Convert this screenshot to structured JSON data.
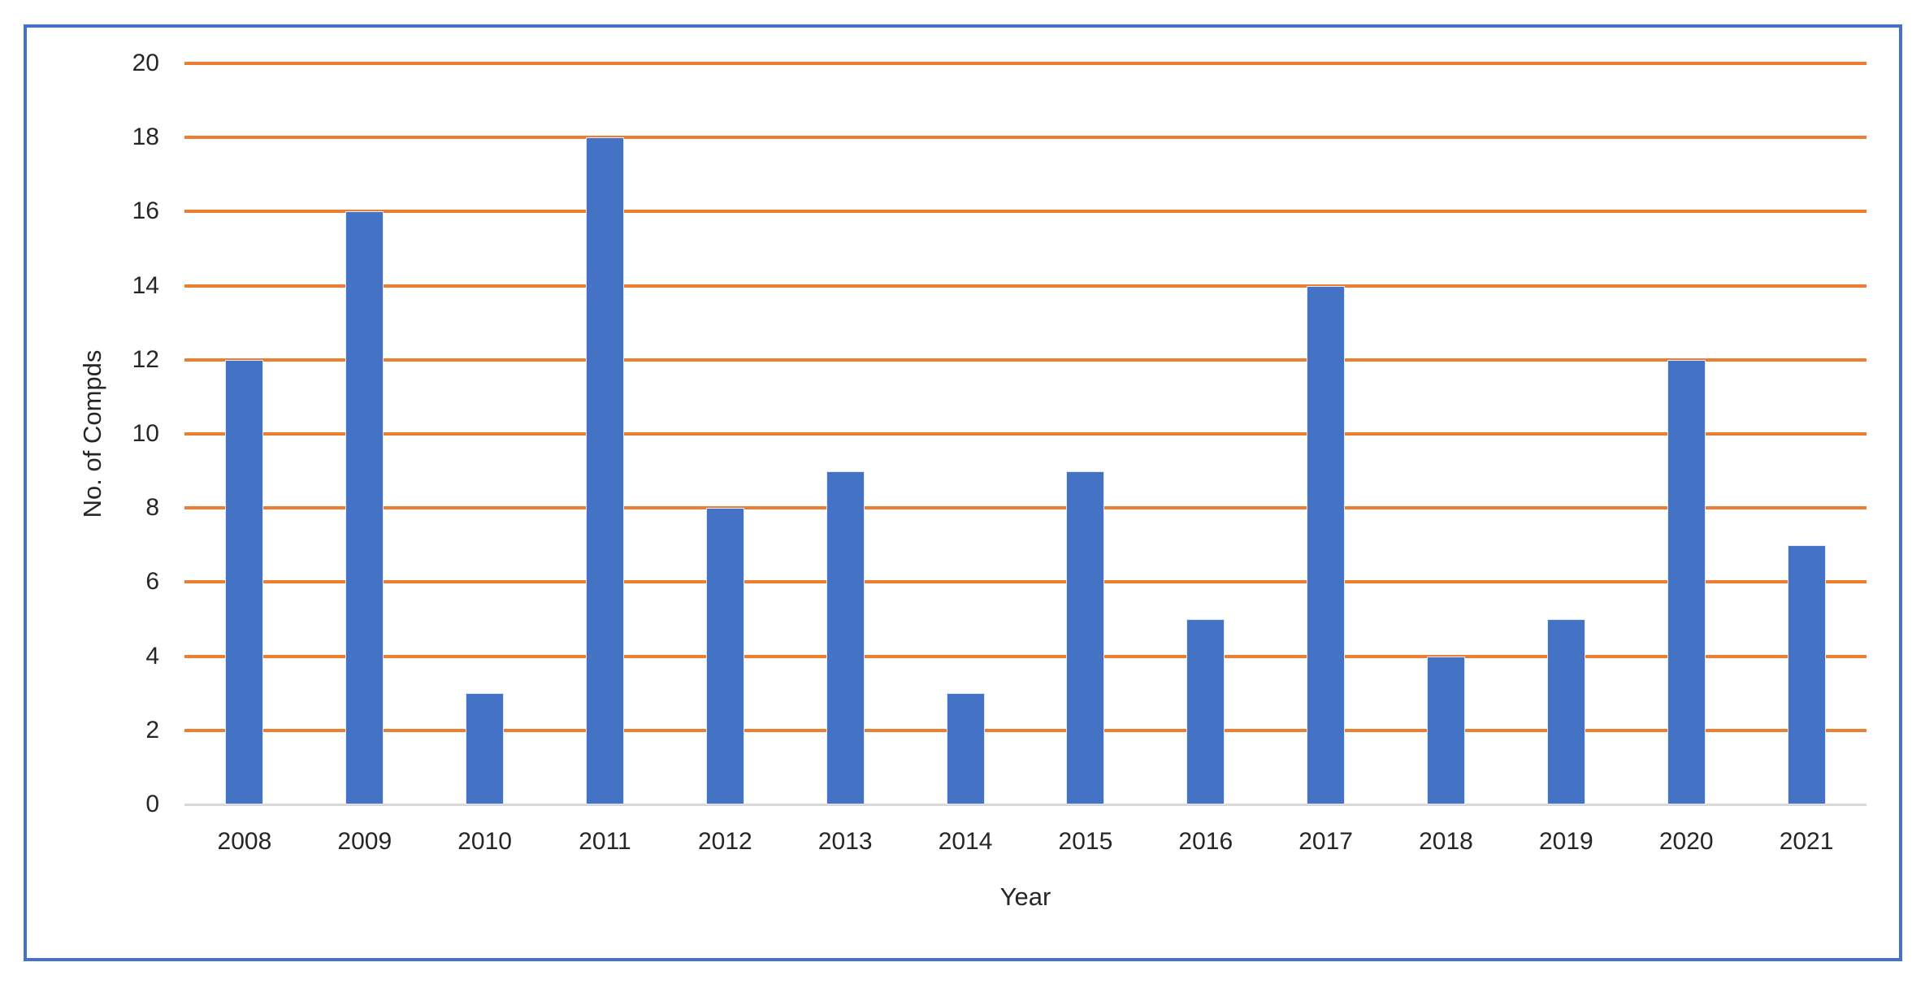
{
  "chart_data": {
    "type": "bar",
    "title": "",
    "xlabel": "Year",
    "ylabel": "No. of Compds",
    "categories": [
      "2008",
      "2009",
      "2010",
      "2011",
      "2012",
      "2013",
      "2014",
      "2015",
      "2016",
      "2017",
      "2018",
      "2019",
      "2020",
      "2021"
    ],
    "values": [
      12,
      16,
      3,
      18,
      8,
      9,
      3,
      9,
      5,
      14,
      4,
      5,
      12,
      7
    ],
    "series_name": "No. of Compds",
    "ylim": [
      0,
      20
    ],
    "ytick_step": 2,
    "yticks": [
      0,
      2,
      4,
      6,
      8,
      10,
      12,
      14,
      16,
      18,
      20
    ],
    "grid": "horizontal",
    "legend": "none",
    "colors": {
      "bar": "#4472C4",
      "gridline": "#ED7D31",
      "axis_line": "#D9D9D9",
      "text": "#262626",
      "frame_border": "#4472C4",
      "background": "#FFFFFF"
    }
  }
}
